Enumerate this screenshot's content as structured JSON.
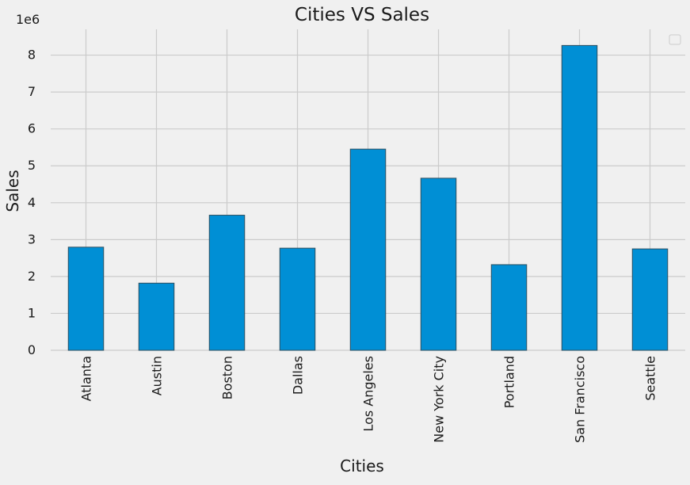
{
  "chart_data": {
    "type": "bar",
    "title": "Cities VS Sales",
    "xlabel": "Cities",
    "ylabel": "Sales",
    "y_offset_label": "1e6",
    "categories": [
      "Atlanta",
      "Austin",
      "Boston",
      "Dallas",
      "Los Angeles",
      "New York City",
      "Portland",
      "San Francisco",
      "Seattle"
    ],
    "values": [
      2795499,
      1819582,
      3661642,
      2767975,
      5452570,
      4664317,
      2320490,
      8262204,
      2747755
    ],
    "ylim": [
      0,
      8.7
    ],
    "y_ticks": [
      0,
      1,
      2,
      3,
      4,
      5,
      6,
      7,
      8
    ],
    "grid": true,
    "legend": {
      "placement": "top-right",
      "entries": []
    },
    "colors": {
      "bar": "#008fd5",
      "bar_edge": "#2f4f5f",
      "grid": "#cbcbcb",
      "background": "#f0f0f0"
    }
  }
}
